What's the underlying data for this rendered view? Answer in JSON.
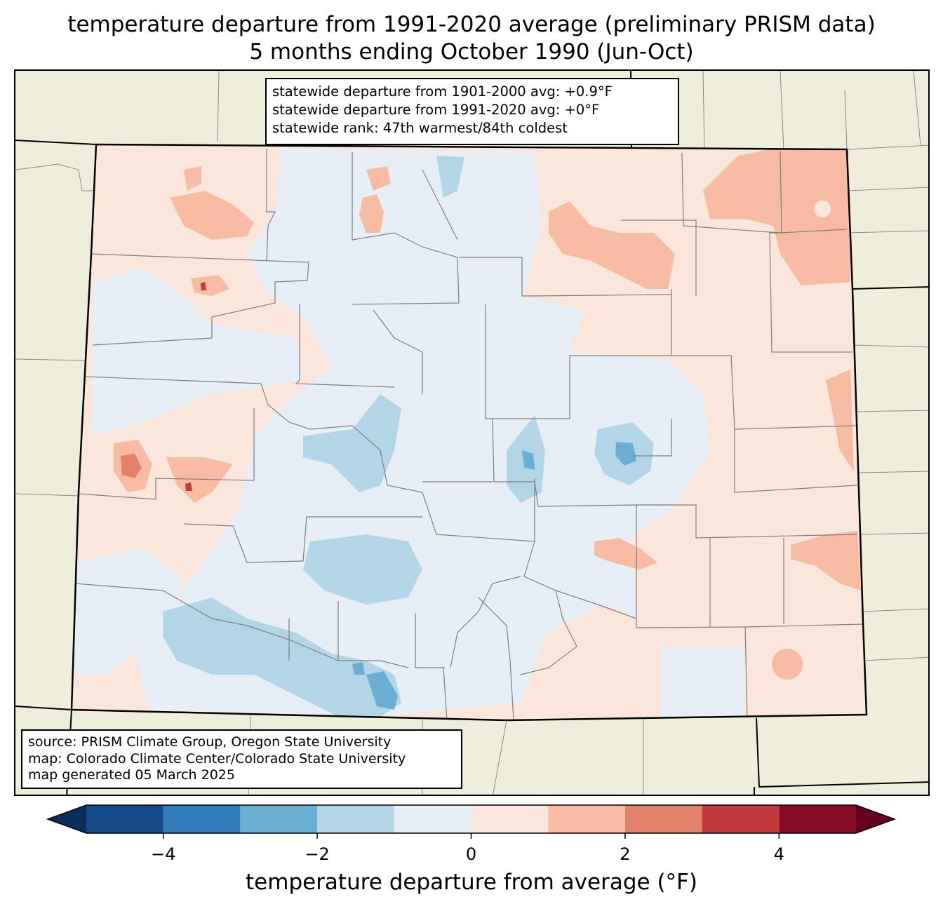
{
  "title": {
    "line1": "temperature departure from 1991-2020 average (preliminary PRISM data)",
    "line2": "5 months ending October 1990 (Jun-Oct)"
  },
  "stats": {
    "line1": "statewide departure from 1901-2000 avg: +0.9°F",
    "line2": "statewide departure from 1991-2020 avg: +0°F",
    "line3": "statewide rank: 47th warmest/84th coldest"
  },
  "source": {
    "line1": "source: PRISM Climate Group, Oregon State University",
    "line2": "map: Colorado Climate Center/Colorado State University",
    "line3": "map generated 05 March 2025"
  },
  "colorbar": {
    "label": "temperature departure from average (°F)",
    "ticks": [
      "−4",
      "−2",
      "0",
      "2",
      "4"
    ],
    "bins": [
      {
        "from": -5,
        "to": -4,
        "color": "#144b89"
      },
      {
        "from": -4,
        "to": -3,
        "color": "#2f7ab8"
      },
      {
        "from": -3,
        "to": -2,
        "color": "#6aaed3"
      },
      {
        "from": -2,
        "to": -1,
        "color": "#b2d5e8"
      },
      {
        "from": -1,
        "to": 0,
        "color": "#e6eef6"
      },
      {
        "from": 0,
        "to": 1,
        "color": "#fbe6dc"
      },
      {
        "from": 1,
        "to": 2,
        "color": "#f7bba1"
      },
      {
        "from": 2,
        "to": 3,
        "color": "#e3806a"
      },
      {
        "from": 3,
        "to": 4,
        "color": "#c23a3e"
      },
      {
        "from": 4,
        "to": 5,
        "color": "#870d27"
      }
    ],
    "under_color": "#0a2f5c",
    "over_color": "#65001f"
  },
  "colors": {
    "background_land": "#efeedb",
    "neutral_cool": "#e6eef6",
    "neutral_warm": "#fbe6dc"
  }
}
